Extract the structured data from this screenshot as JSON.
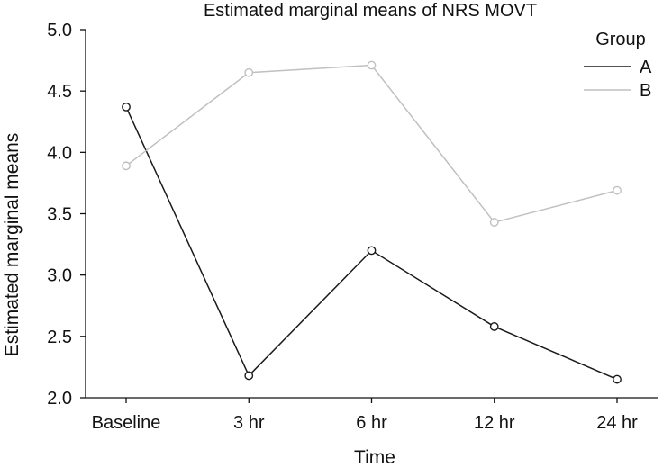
{
  "chart_data": {
    "type": "line",
    "title": "Estimated marginal means of NRS MOVT",
    "xlabel": "Time",
    "ylabel": "Estimated marginal means",
    "categories": [
      "Baseline",
      "3 hr",
      "6 hr",
      "12 hr",
      "24 hr"
    ],
    "ylim": [
      2.0,
      5.0
    ],
    "yticks": [
      "2.0",
      "2.5",
      "3.0",
      "3.5",
      "4.0",
      "4.5",
      "5.0"
    ],
    "grid": false,
    "legend": {
      "title": "Group",
      "position": "top-right"
    },
    "series": [
      {
        "name": "A",
        "color": "#1a1a1a",
        "values": [
          4.37,
          2.18,
          3.2,
          2.58,
          2.15
        ]
      },
      {
        "name": "B",
        "color": "#c0c0c0",
        "values": [
          3.89,
          4.65,
          4.71,
          3.43,
          3.69
        ]
      }
    ]
  }
}
